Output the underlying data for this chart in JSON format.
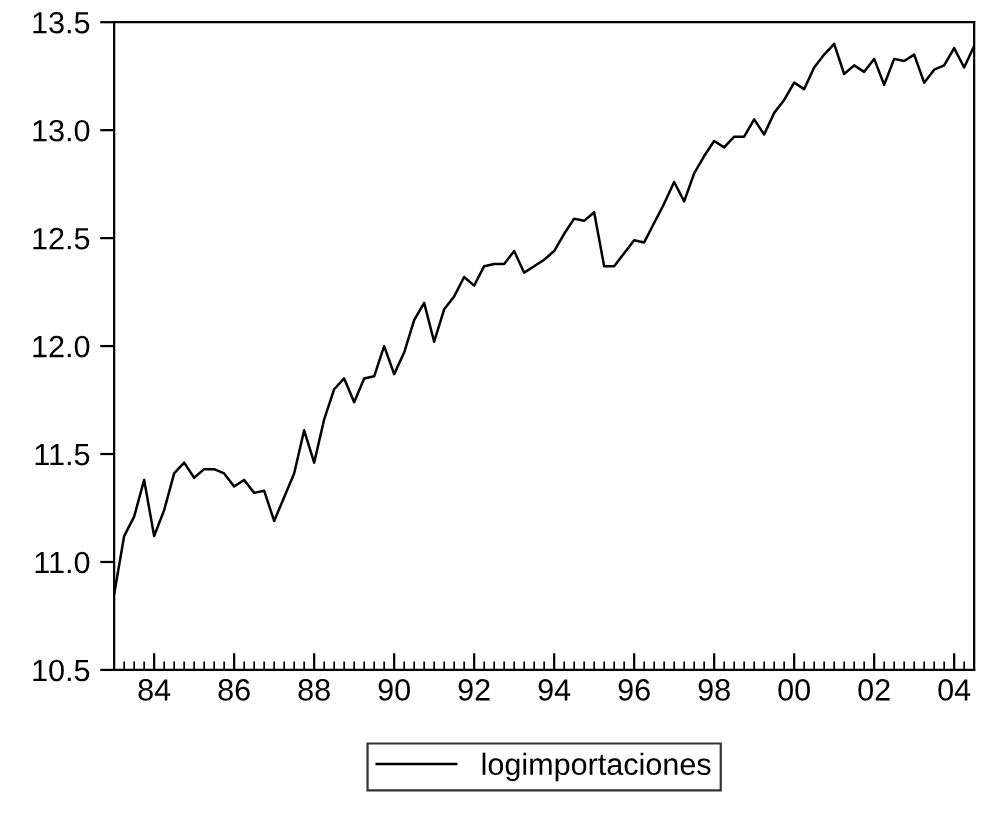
{
  "chart_data": {
    "type": "line",
    "x": [
      1983.0,
      1983.25,
      1983.5,
      1983.75,
      1984.0,
      1984.25,
      1984.5,
      1984.75,
      1985.0,
      1985.25,
      1985.5,
      1985.75,
      1986.0,
      1986.25,
      1986.5,
      1986.75,
      1987.0,
      1987.25,
      1987.5,
      1987.75,
      1988.0,
      1988.25,
      1988.5,
      1988.75,
      1989.0,
      1989.25,
      1989.5,
      1989.75,
      1990.0,
      1990.25,
      1990.5,
      1990.75,
      1991.0,
      1991.25,
      1991.5,
      1991.75,
      1992.0,
      1992.25,
      1992.5,
      1992.75,
      1993.0,
      1993.25,
      1993.5,
      1993.75,
      1994.0,
      1994.25,
      1994.5,
      1994.75,
      1995.0,
      1995.25,
      1995.5,
      1995.75,
      1996.0,
      1996.25,
      1996.5,
      1996.75,
      1997.0,
      1997.25,
      1997.5,
      1997.75,
      1998.0,
      1998.25,
      1998.5,
      1998.75,
      1999.0,
      1999.25,
      1999.5,
      1999.75,
      2000.0,
      2000.25,
      2000.5,
      2000.75,
      2001.0,
      2001.25,
      2001.5,
      2001.75,
      2002.0,
      2002.25,
      2002.5,
      2002.75,
      2003.0,
      2003.25,
      2003.5,
      2003.75,
      2004.0,
      2004.25,
      2004.5
    ],
    "series": [
      {
        "name": "logimportaciones",
        "color": "#000000",
        "values": [
          10.85,
          11.12,
          11.21,
          11.38,
          11.12,
          11.24,
          11.41,
          11.46,
          11.39,
          11.43,
          11.43,
          11.41,
          11.35,
          11.38,
          11.32,
          11.33,
          11.19,
          11.3,
          11.41,
          11.61,
          11.46,
          11.66,
          11.8,
          11.85,
          11.74,
          11.85,
          11.86,
          12.0,
          11.87,
          11.97,
          12.12,
          12.2,
          12.02,
          12.17,
          12.23,
          12.32,
          12.28,
          12.37,
          12.38,
          12.38,
          12.44,
          12.34,
          12.37,
          12.4,
          12.44,
          12.52,
          12.59,
          12.58,
          12.62,
          12.37,
          12.37,
          12.43,
          12.49,
          12.48,
          12.57,
          12.66,
          12.76,
          12.67,
          12.8,
          12.88,
          12.95,
          12.92,
          12.97,
          12.97,
          13.05,
          12.98,
          13.08,
          13.14,
          13.22,
          13.19,
          13.29,
          13.35,
          13.4,
          13.26,
          13.3,
          13.27,
          13.33,
          13.21,
          13.33,
          13.32,
          13.35,
          13.22,
          13.28,
          13.3,
          13.38,
          13.29,
          13.39
        ]
      }
    ],
    "xlim": [
      1983.0,
      2004.5
    ],
    "xticks": [
      {
        "value": 1984,
        "label": "84"
      },
      {
        "value": 1986,
        "label": "86"
      },
      {
        "value": 1988,
        "label": "88"
      },
      {
        "value": 1990,
        "label": "90"
      },
      {
        "value": 1992,
        "label": "92"
      },
      {
        "value": 1994,
        "label": "94"
      },
      {
        "value": 1996,
        "label": "96"
      },
      {
        "value": 1998,
        "label": "98"
      },
      {
        "value": 2000,
        "label": "00"
      },
      {
        "value": 2002,
        "label": "02"
      },
      {
        "value": 2004,
        "label": "04"
      }
    ],
    "ylim": [
      10.5,
      13.5
    ],
    "yticks": [
      {
        "value": 10.5,
        "label": "10.5"
      },
      {
        "value": 11.0,
        "label": "11.0"
      },
      {
        "value": 11.5,
        "label": "11.5"
      },
      {
        "value": 12.0,
        "label": "12.0"
      },
      {
        "value": 12.5,
        "label": "12.5"
      },
      {
        "value": 13.0,
        "label": "13.0"
      },
      {
        "value": 13.5,
        "label": "13.5"
      }
    ],
    "grid": false,
    "legend": "bottom",
    "marker": "none",
    "line_style": "solid"
  }
}
